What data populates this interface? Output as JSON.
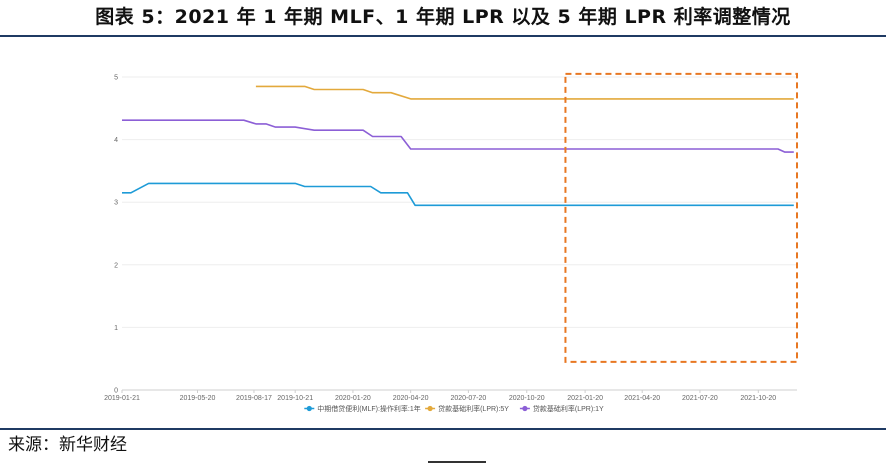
{
  "figure": {
    "title": "图表 5：2021 年 1 年期 MLF、1 年期 LPR 以及 5 年期 LPR 利率调整情况",
    "source_label": "来源：",
    "source_name": "新华财经"
  },
  "chart_data": {
    "type": "line",
    "title": "",
    "xlabel": "",
    "ylabel": "",
    "ylim": [
      0,
      5
    ],
    "yticks": [
      "0",
      "1",
      "2",
      "3",
      "4",
      "5"
    ],
    "xlim": [
      "2019-01-21",
      "2021-12-20"
    ],
    "xticks": [
      "2019-01-21",
      "2019-05-20",
      "2019-08-17",
      "2019-10-21",
      "2020-01-20",
      "2020-04-20",
      "2020-07-20",
      "2020-10-20",
      "2021-01-20",
      "2021-04-20",
      "2021-07-20",
      "2021-10-20"
    ],
    "grid": true,
    "legend": "bottom",
    "highlight": {
      "style": "dashed rectangle",
      "color": "#e87722",
      "x_range": [
        "2020-12-20",
        "2021-12-20"
      ],
      "y_range": [
        0.45,
        5.05
      ]
    },
    "series": [
      {
        "name": "中期借贷便利(MLF):操作利率:1年",
        "color": "#1e9bd7",
        "points": [
          [
            "2019-01-21",
            3.15
          ],
          [
            "2019-02-04",
            3.15
          ],
          [
            "2019-03-04",
            3.3
          ],
          [
            "2019-10-21",
            3.3
          ],
          [
            "2019-11-05",
            3.25
          ],
          [
            "2020-02-17",
            3.25
          ],
          [
            "2020-03-04",
            3.15
          ],
          [
            "2020-04-15",
            3.15
          ],
          [
            "2020-04-27",
            2.95
          ],
          [
            "2021-12-15",
            2.95
          ]
        ]
      },
      {
        "name": "贷款基础利率(LPR):5Y",
        "color": "#e3a93c",
        "points": [
          [
            "2019-08-20",
            4.85
          ],
          [
            "2019-11-05",
            4.85
          ],
          [
            "2019-11-20",
            4.8
          ],
          [
            "2020-02-05",
            4.8
          ],
          [
            "2020-02-20",
            4.75
          ],
          [
            "2020-03-20",
            4.75
          ],
          [
            "2020-04-20",
            4.65
          ],
          [
            "2021-12-15",
            4.65
          ]
        ]
      },
      {
        "name": "贷款基础利率(LPR):1Y",
        "color": "#8c5fd6",
        "points": [
          [
            "2019-01-21",
            4.31
          ],
          [
            "2019-08-01",
            4.31
          ],
          [
            "2019-08-20",
            4.25
          ],
          [
            "2019-09-05",
            4.25
          ],
          [
            "2019-09-20",
            4.2
          ],
          [
            "2019-10-21",
            4.2
          ],
          [
            "2019-11-20",
            4.15
          ],
          [
            "2020-02-05",
            4.15
          ],
          [
            "2020-02-20",
            4.05
          ],
          [
            "2020-04-05",
            4.05
          ],
          [
            "2020-04-20",
            3.85
          ],
          [
            "2021-11-20",
            3.85
          ],
          [
            "2021-12-01",
            3.8
          ],
          [
            "2021-12-15",
            3.8
          ]
        ]
      }
    ]
  }
}
